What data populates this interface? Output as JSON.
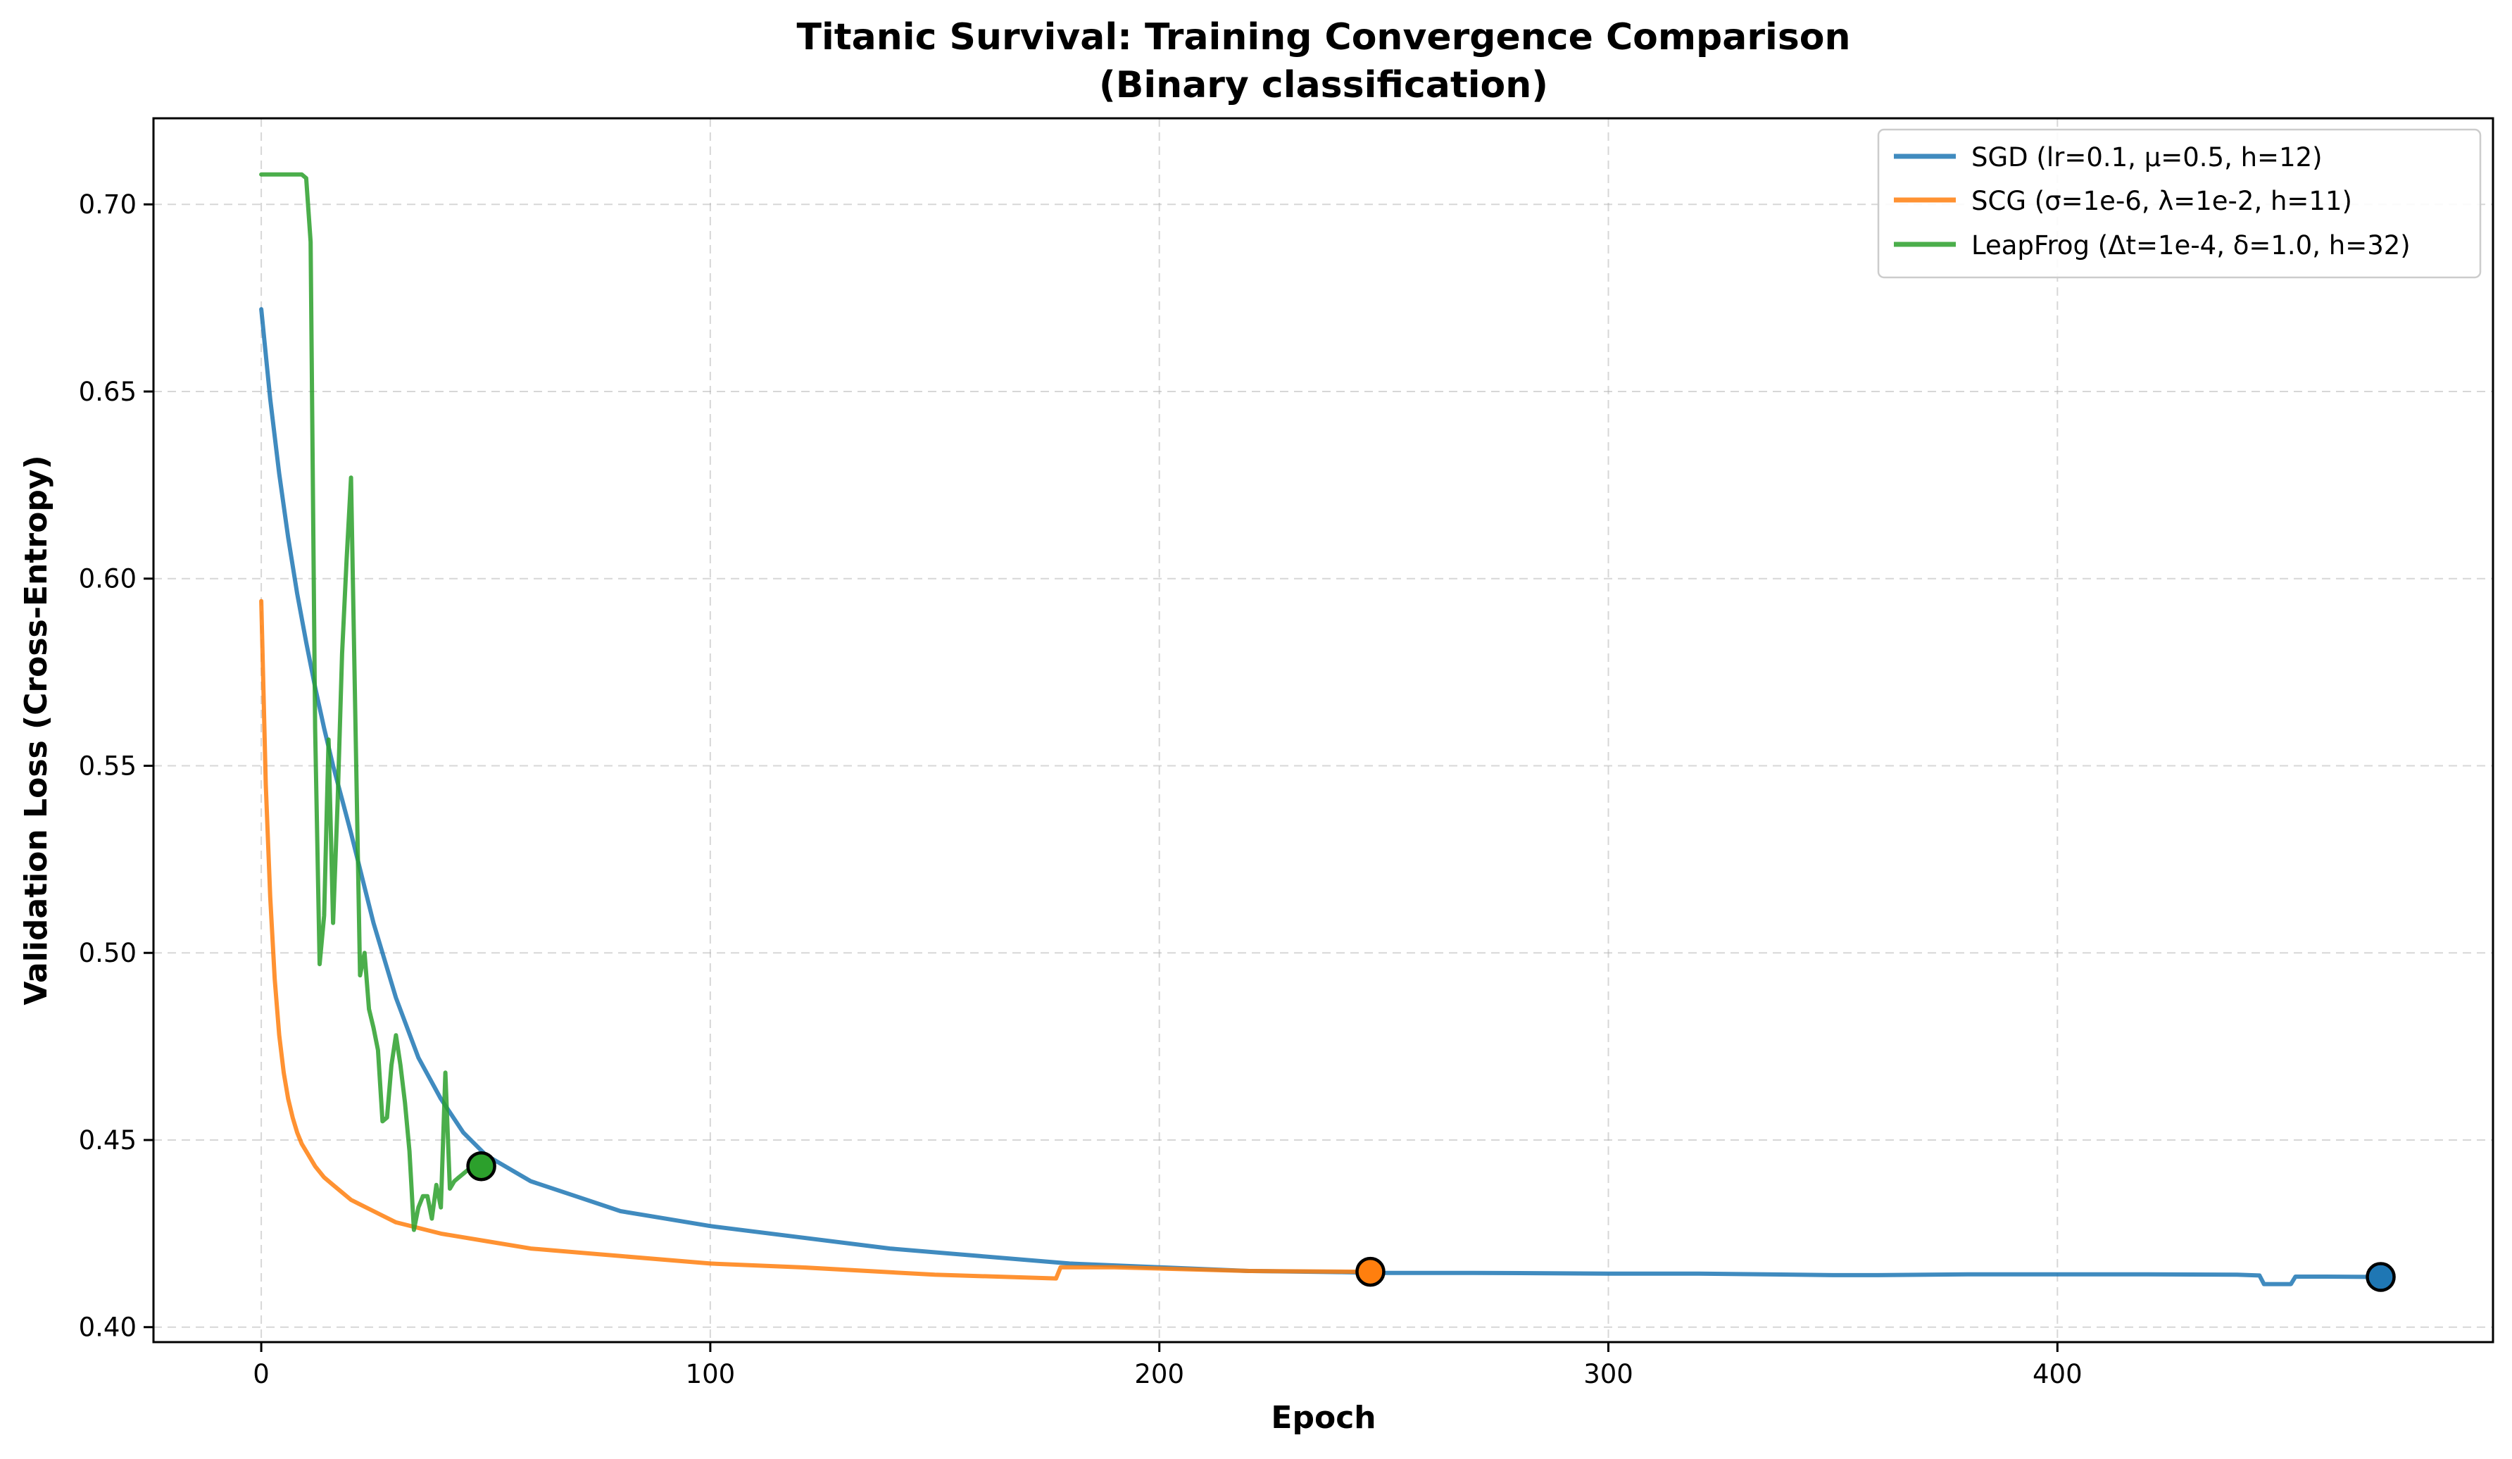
{
  "chart_data": {
    "type": "line",
    "title": "Titanic Survival: Training Convergence Comparison",
    "subtitle": "(Binary classification)",
    "xlabel": "Epoch",
    "ylabel": "Validation Loss (Cross-Entropy)",
    "xlim": [
      -24,
      497
    ],
    "ylim": [
      0.396,
      0.723
    ],
    "xticks": [
      0,
      100,
      200,
      300,
      400
    ],
    "yticks": [
      0.4,
      0.45,
      0.5,
      0.55,
      0.6,
      0.65,
      0.7
    ],
    "xtick_labels": [
      "0",
      "100",
      "200",
      "300",
      "400"
    ],
    "ytick_labels": [
      "0.40",
      "0.45",
      "0.50",
      "0.55",
      "0.60",
      "0.65",
      "0.70"
    ],
    "grid": true,
    "legend_position": "top-right",
    "series": [
      {
        "name": "SGD (lr=0.1, μ=0.5, h=12)",
        "color": "#1f77b4",
        "x": [
          0,
          2,
          4,
          6,
          8,
          10,
          12,
          14,
          16,
          18,
          20,
          25,
          30,
          35,
          40,
          45,
          50,
          60,
          70,
          80,
          90,
          100,
          120,
          140,
          160,
          180,
          200,
          220,
          240,
          250,
          270,
          300,
          320,
          350,
          360,
          380,
          400,
          420,
          440,
          445,
          446,
          452,
          453,
          460,
          472
        ],
        "y": [
          0.672,
          0.648,
          0.628,
          0.611,
          0.596,
          0.583,
          0.571,
          0.56,
          0.55,
          0.541,
          0.532,
          0.508,
          0.488,
          0.472,
          0.461,
          0.452,
          0.446,
          0.439,
          0.435,
          0.431,
          0.429,
          0.427,
          0.424,
          0.421,
          0.419,
          0.417,
          0.416,
          0.415,
          0.4147,
          0.4145,
          0.4145,
          0.4143,
          0.4143,
          0.4139,
          0.4139,
          0.4141,
          0.4141,
          0.4141,
          0.414,
          0.4138,
          0.4115,
          0.4115,
          0.4135,
          0.4135,
          0.4134
        ],
        "marker": {
          "x": 472,
          "y": 0.4134
        }
      },
      {
        "name": "SCG (σ=1e-6, λ=1e-2, h=11)",
        "color": "#ff7f0e",
        "x": [
          0,
          1,
          2,
          3,
          4,
          5,
          6,
          7,
          8,
          9,
          10,
          12,
          14,
          16,
          18,
          20,
          25,
          30,
          40,
          50,
          60,
          80,
          100,
          120,
          150,
          177,
          178,
          190,
          220,
          247
        ],
        "y": [
          0.594,
          0.545,
          0.515,
          0.493,
          0.478,
          0.468,
          0.461,
          0.456,
          0.452,
          0.449,
          0.447,
          0.443,
          0.44,
          0.438,
          0.436,
          0.434,
          0.431,
          0.428,
          0.425,
          0.423,
          0.421,
          0.419,
          0.417,
          0.416,
          0.414,
          0.413,
          0.416,
          0.416,
          0.415,
          0.4148
        ],
        "marker": {
          "x": 247,
          "y": 0.4148
        }
      },
      {
        "name": "LeapFrog (Δt=1e-4, δ=1.0, h=32)",
        "color": "#2ca02c",
        "x": [
          0,
          9,
          10,
          11,
          12,
          13,
          14,
          15,
          16,
          17,
          18,
          19,
          20,
          21,
          22,
          23,
          24,
          25,
          26,
          27,
          28,
          29,
          30,
          31,
          32,
          33,
          34,
          35,
          36,
          37,
          38,
          39,
          40,
          41,
          42,
          43,
          44,
          45,
          46,
          47,
          48,
          49
        ],
        "y": [
          0.708,
          0.708,
          0.707,
          0.69,
          0.56,
          0.497,
          0.51,
          0.557,
          0.508,
          0.54,
          0.58,
          0.605,
          0.627,
          0.56,
          0.494,
          0.5,
          0.485,
          0.48,
          0.474,
          0.455,
          0.456,
          0.47,
          0.478,
          0.47,
          0.46,
          0.447,
          0.426,
          0.432,
          0.435,
          0.435,
          0.429,
          0.438,
          0.432,
          0.468,
          0.437,
          0.439,
          0.44,
          0.441,
          0.442,
          0.442,
          0.443,
          0.443
        ],
        "marker": {
          "x": 49,
          "y": 0.443
        }
      }
    ]
  }
}
